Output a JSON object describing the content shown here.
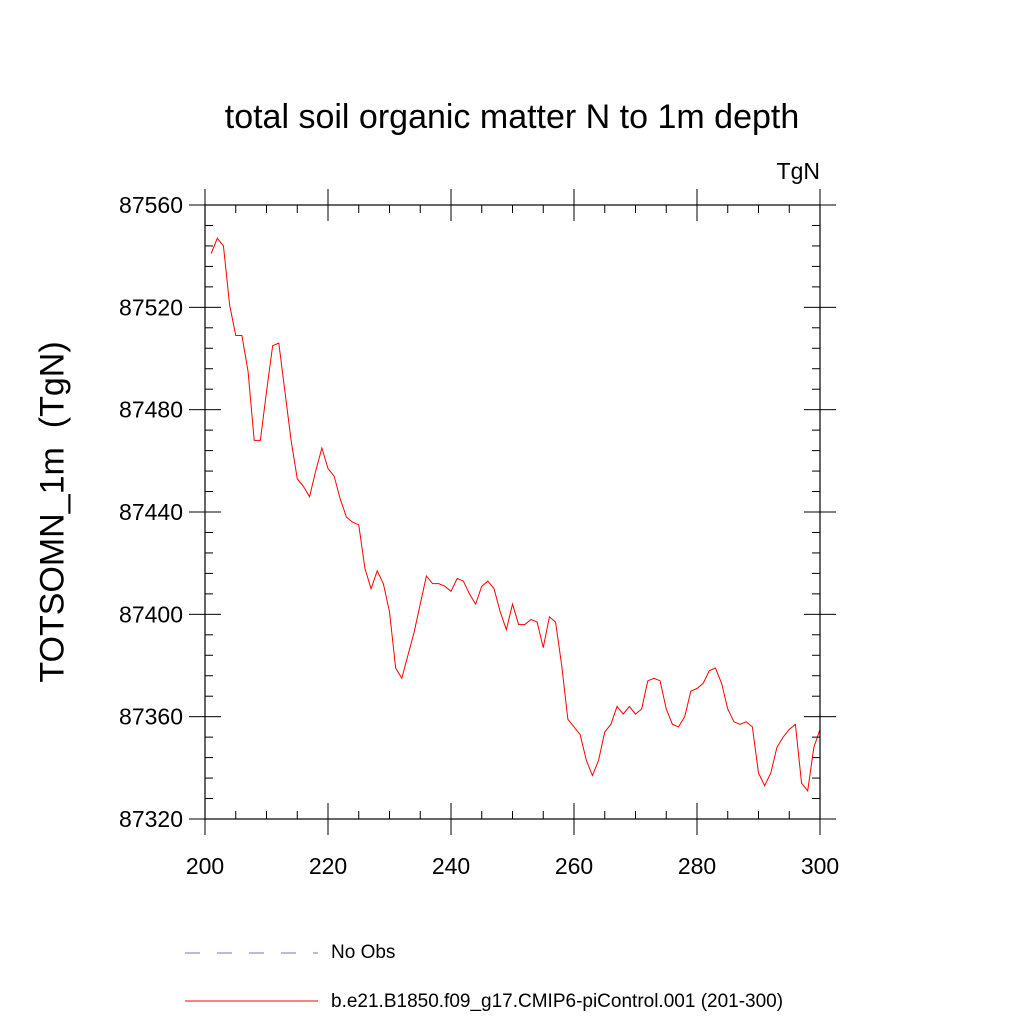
{
  "chart_data": {
    "type": "line",
    "title": "total soil organic matter N to 1m depth",
    "units_label": "TgN",
    "ylabel": "TOTSOMN_1m  (TgN)",
    "xlabel": "",
    "xlim": [
      200,
      300
    ],
    "ylim": [
      87320,
      87560
    ],
    "x_ticks": [
      200,
      220,
      240,
      260,
      280,
      300
    ],
    "y_ticks": [
      87320,
      87360,
      87400,
      87440,
      87480,
      87520,
      87560
    ],
    "series": [
      {
        "name": "b.e21.B1850.f09_g17.CMIP6-piControl.001 (201-300)",
        "color": "#ff0000",
        "style": "solid",
        "x": [
          201,
          202,
          203,
          204,
          205,
          206,
          207,
          208,
          209,
          210,
          211,
          212,
          213,
          214,
          215,
          216,
          217,
          218,
          219,
          220,
          221,
          222,
          223,
          224,
          225,
          226,
          227,
          228,
          229,
          230,
          231,
          232,
          233,
          234,
          235,
          236,
          237,
          238,
          239,
          240,
          241,
          242,
          243,
          244,
          245,
          246,
          247,
          248,
          249,
          250,
          251,
          252,
          253,
          254,
          255,
          256,
          257,
          258,
          259,
          260,
          261,
          262,
          263,
          264,
          265,
          266,
          267,
          268,
          269,
          270,
          271,
          272,
          273,
          274,
          275,
          276,
          277,
          278,
          279,
          280,
          281,
          282,
          283,
          284,
          285,
          286,
          287,
          288,
          289,
          290,
          291,
          292,
          293,
          294,
          295,
          296,
          297,
          298,
          299,
          300
        ],
        "values": [
          87541,
          87547,
          87544,
          87521,
          87509,
          87509,
          87495,
          87468,
          87468,
          87487,
          87505,
          87506,
          87487,
          87468,
          87453,
          87450,
          87446,
          87456,
          87465,
          87457,
          87454,
          87445,
          87438,
          87436,
          87435,
          87418,
          87410,
          87417,
          87412,
          87401,
          87379,
          87375,
          87384,
          87393,
          87404,
          87415,
          87412,
          87412,
          87411,
          87409,
          87414,
          87413,
          87408,
          87404,
          87411,
          87413,
          87410,
          87401,
          87394,
          87404,
          87396,
          87396,
          87398,
          87397,
          87387,
          87399,
          87397,
          87380,
          87359,
          87356,
          87353,
          87343,
          87337,
          87343,
          87354,
          87357,
          87364,
          87361,
          87364,
          87361,
          87363,
          87374,
          87375,
          87374,
          87363,
          87357,
          87356,
          87360,
          87370,
          87371,
          87373,
          87378,
          87379,
          87373,
          87363,
          87358,
          87357,
          87358,
          87356,
          87338,
          87333,
          87338,
          87348,
          87352,
          87355,
          87357,
          87334,
          87331,
          87348,
          87355
        ]
      },
      {
        "name": "No Obs",
        "color": "#7a70c8",
        "style": "dashed",
        "x": [],
        "values": []
      }
    ]
  }
}
